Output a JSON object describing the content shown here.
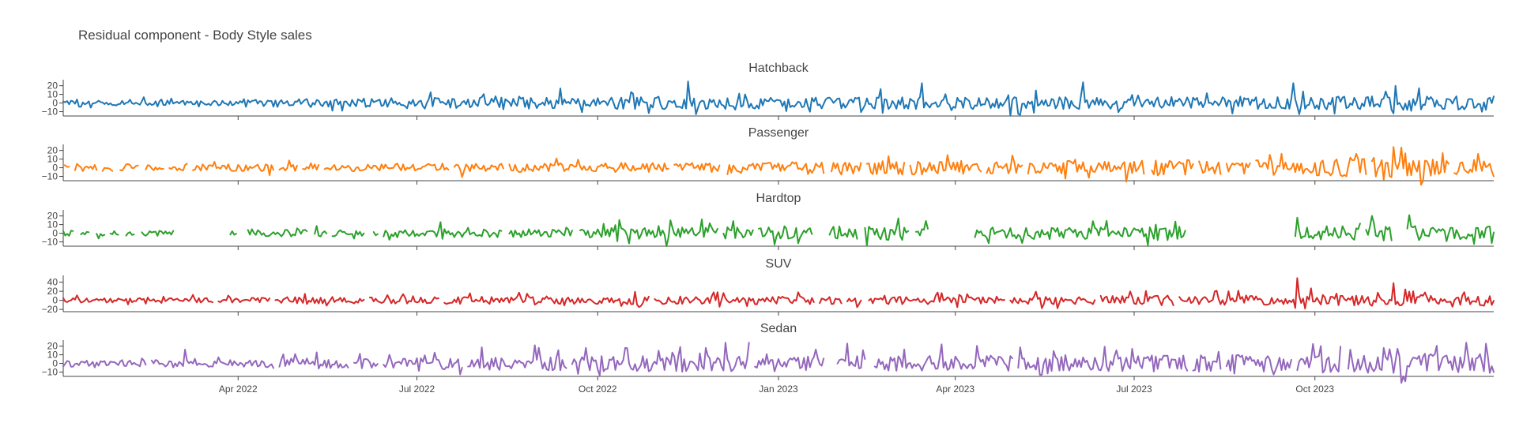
{
  "chart_data": {
    "type": "line",
    "title": "Residual component - Body Style sales",
    "x_start": "2022-01-02",
    "x_end": "2023-12-31",
    "x_ticks": [
      {
        "date": "2022-04-01",
        "label": "Apr 2022"
      },
      {
        "date": "2022-07-01",
        "label": "Jul 2022"
      },
      {
        "date": "2022-10-01",
        "label": "Oct 2022"
      },
      {
        "date": "2023-01-01",
        "label": "Jan 2023"
      },
      {
        "date": "2023-04-01",
        "label": "Apr 2023"
      },
      {
        "date": "2023-07-01",
        "label": "Jul 2023"
      },
      {
        "date": "2023-10-01",
        "label": "Oct 2023"
      }
    ],
    "grid": false,
    "legend": "none",
    "panels": [
      {
        "name": "Hatchback",
        "color": "#1f77b4",
        "ylim": [
          -15,
          27
        ],
        "y_ticks": [
          20,
          10,
          0,
          -10
        ],
        "y_tick_labels": [
          "20",
          "10",
          "0",
          "−10"
        ],
        "typical_amplitude": [
          3,
          5,
          7,
          7,
          7,
          7,
          7,
          8
        ],
        "spikes": [
          [
            "2022-09-12",
            17
          ],
          [
            "2022-11-16",
            25
          ],
          [
            "2022-11-20",
            -13
          ],
          [
            "2023-03-15",
            23
          ],
          [
            "2023-06-05",
            24
          ],
          [
            "2023-09-20",
            23
          ],
          [
            "2023-09-23",
            -13
          ],
          [
            "2023-11-10",
            -12
          ],
          [
            "2023-11-11",
            20
          ]
        ],
        "gaps": []
      },
      {
        "name": "Passenger",
        "color": "#ff7f0e",
        "ylim": [
          -15,
          27
        ],
        "y_ticks": [
          20,
          10,
          0,
          -10
        ],
        "y_tick_labels": [
          "20",
          "10",
          "0",
          "−10"
        ],
        "typical_amplitude": [
          4,
          4,
          5,
          6,
          8,
          7,
          9,
          10
        ],
        "spikes": [
          [
            "2023-09-08",
            15
          ],
          [
            "2023-11-10",
            24
          ],
          [
            "2023-11-09",
            -11
          ],
          [
            "2023-12-05",
            17
          ],
          [
            "2023-12-23",
            16
          ]
        ],
        "gaps": [
          [
            "2022-01-06",
            "2022-01-07"
          ],
          [
            "2022-01-20",
            "2022-01-21"
          ],
          [
            "2022-01-28",
            "2022-01-30"
          ],
          [
            "2022-02-10",
            "2022-02-12"
          ],
          [
            "2022-02-23",
            "2022-02-24"
          ],
          [
            "2022-03-07",
            "2022-03-08"
          ],
          [
            "2022-04-20",
            "2022-04-21"
          ],
          [
            "2022-05-02",
            "2022-05-03"
          ],
          [
            "2022-05-13",
            "2022-05-14"
          ],
          [
            "2022-07-18",
            "2022-07-19"
          ],
          [
            "2022-08-15",
            "2022-08-16"
          ],
          [
            "2022-11-07",
            "2022-11-08"
          ],
          [
            "2022-12-03",
            "2022-12-05"
          ],
          [
            "2023-01-25",
            "2023-01-27"
          ],
          [
            "2023-02-13",
            "2023-02-14"
          ],
          [
            "2023-03-07",
            "2023-03-08"
          ],
          [
            "2023-04-15",
            "2023-04-16"
          ],
          [
            "2023-05-06",
            "2023-05-07"
          ],
          [
            "2023-07-07",
            "2023-07-09"
          ],
          [
            "2023-08-01",
            "2023-08-02"
          ],
          [
            "2023-08-15",
            "2023-08-16"
          ],
          [
            "2023-08-30",
            "2023-08-31"
          ],
          [
            "2023-10-28",
            "2023-10-29"
          ],
          [
            "2023-12-09",
            "2023-12-10"
          ]
        ]
      },
      {
        "name": "Hardtop",
        "color": "#2ca02c",
        "ylim": [
          -15,
          27
        ],
        "y_ticks": [
          20,
          10,
          0,
          -10
        ],
        "y_tick_labels": [
          "20",
          "10",
          "0",
          "−10"
        ],
        "typical_amplitude": [
          3,
          4,
          5,
          7,
          8,
          7,
          8,
          9
        ],
        "spikes": [
          [
            "2023-06-10",
            14
          ],
          [
            "2023-09-22",
            18
          ],
          [
            "2023-11-18",
            21
          ]
        ],
        "gaps": [
          [
            "2022-01-08",
            "2022-01-10"
          ],
          [
            "2022-01-16",
            "2022-01-18"
          ],
          [
            "2022-01-24",
            "2022-01-25"
          ],
          [
            "2022-01-31",
            "2022-02-02"
          ],
          [
            "2022-02-08",
            "2022-02-10"
          ],
          [
            "2022-02-28",
            "2022-03-27"
          ],
          [
            "2022-04-01",
            "2022-04-05"
          ],
          [
            "2022-05-07",
            "2022-05-09"
          ],
          [
            "2022-05-17",
            "2022-05-18"
          ],
          [
            "2022-06-05",
            "2022-06-08"
          ],
          [
            "2022-06-12",
            "2022-06-13"
          ],
          [
            "2022-08-14",
            "2022-08-16"
          ],
          [
            "2022-09-19",
            "2022-09-21"
          ],
          [
            "2022-12-02",
            "2022-12-03"
          ],
          [
            "2022-12-20",
            "2022-12-21"
          ],
          [
            "2023-01-19",
            "2023-01-26"
          ],
          [
            "2023-02-11",
            "2023-02-13"
          ],
          [
            "2023-03-09",
            "2023-03-11"
          ],
          [
            "2023-03-19",
            "2023-04-10"
          ],
          [
            "2023-07-28",
            "2023-09-20"
          ],
          [
            "2023-10-25",
            "2023-10-26"
          ],
          [
            "2023-11-10",
            "2023-11-16"
          ]
        ]
      },
      {
        "name": "SUV",
        "color": "#d62728",
        "ylim": [
          -25,
          55
        ],
        "y_ticks": [
          40,
          20,
          0,
          -20
        ],
        "y_tick_labels": [
          "40",
          "20",
          "0",
          "−20"
        ],
        "typical_amplitude": [
          5,
          7,
          8,
          9,
          9,
          10,
          11,
          12
        ],
        "spikes": [
          [
            "2022-12-01",
            18
          ],
          [
            "2022-12-02",
            -14
          ],
          [
            "2023-08-18",
            20
          ],
          [
            "2023-09-22",
            49
          ],
          [
            "2023-09-26",
            -18
          ],
          [
            "2023-10-12",
            15
          ],
          [
            "2023-11-10",
            38
          ],
          [
            "2023-11-20",
            20
          ],
          [
            "2023-12-10",
            -14
          ]
        ],
        "gaps": [
          [
            "2022-03-20",
            "2022-03-21"
          ],
          [
            "2022-04-18",
            "2022-04-19"
          ],
          [
            "2022-06-05",
            "2022-06-06"
          ],
          [
            "2022-07-13",
            "2022-07-14"
          ],
          [
            "2022-10-28",
            "2022-10-29"
          ],
          [
            "2023-01-20",
            "2023-01-21"
          ],
          [
            "2023-02-03",
            "2023-02-04"
          ],
          [
            "2023-02-13",
            "2023-02-15"
          ],
          [
            "2023-04-27",
            "2023-04-28"
          ],
          [
            "2023-06-12",
            "2023-06-13"
          ],
          [
            "2023-07-22",
            "2023-07-23"
          ]
        ]
      },
      {
        "name": "Sedan",
        "color": "#9467bd",
        "ylim": [
          -15,
          27
        ],
        "y_ticks": [
          20,
          10,
          0,
          -10
        ],
        "y_tick_labels": [
          "20",
          "10",
          "0",
          "−10"
        ],
        "typical_amplitude": [
          4,
          6,
          8,
          10,
          9,
          9,
          10,
          11
        ],
        "spikes": [
          [
            "2022-03-05",
            16
          ],
          [
            "2022-09-25",
            18
          ],
          [
            "2022-11-25",
            18
          ],
          [
            "2023-06-30",
            17
          ],
          [
            "2023-11-05",
            18
          ],
          [
            "2023-11-12",
            17
          ],
          [
            "2023-11-10",
            -11
          ]
        ],
        "gaps": [
          [
            "2022-02-14",
            "2022-02-15"
          ],
          [
            "2022-04-20",
            "2022-04-21"
          ],
          [
            "2022-05-28",
            "2022-05-29"
          ],
          [
            "2022-06-12",
            "2022-06-13"
          ],
          [
            "2022-07-25",
            "2022-07-26"
          ],
          [
            "2022-09-16",
            "2022-09-17"
          ],
          [
            "2022-12-18",
            "2022-12-19"
          ],
          [
            "2023-01-25",
            "2023-01-30"
          ],
          [
            "2023-02-15",
            "2023-02-18"
          ],
          [
            "2023-05-01",
            "2023-05-02"
          ],
          [
            "2023-07-29",
            "2023-07-30"
          ],
          [
            "2023-08-15",
            "2023-08-16"
          ],
          [
            "2023-09-20",
            "2023-09-21"
          ],
          [
            "2023-10-15",
            "2023-10-17"
          ]
        ]
      }
    ]
  }
}
